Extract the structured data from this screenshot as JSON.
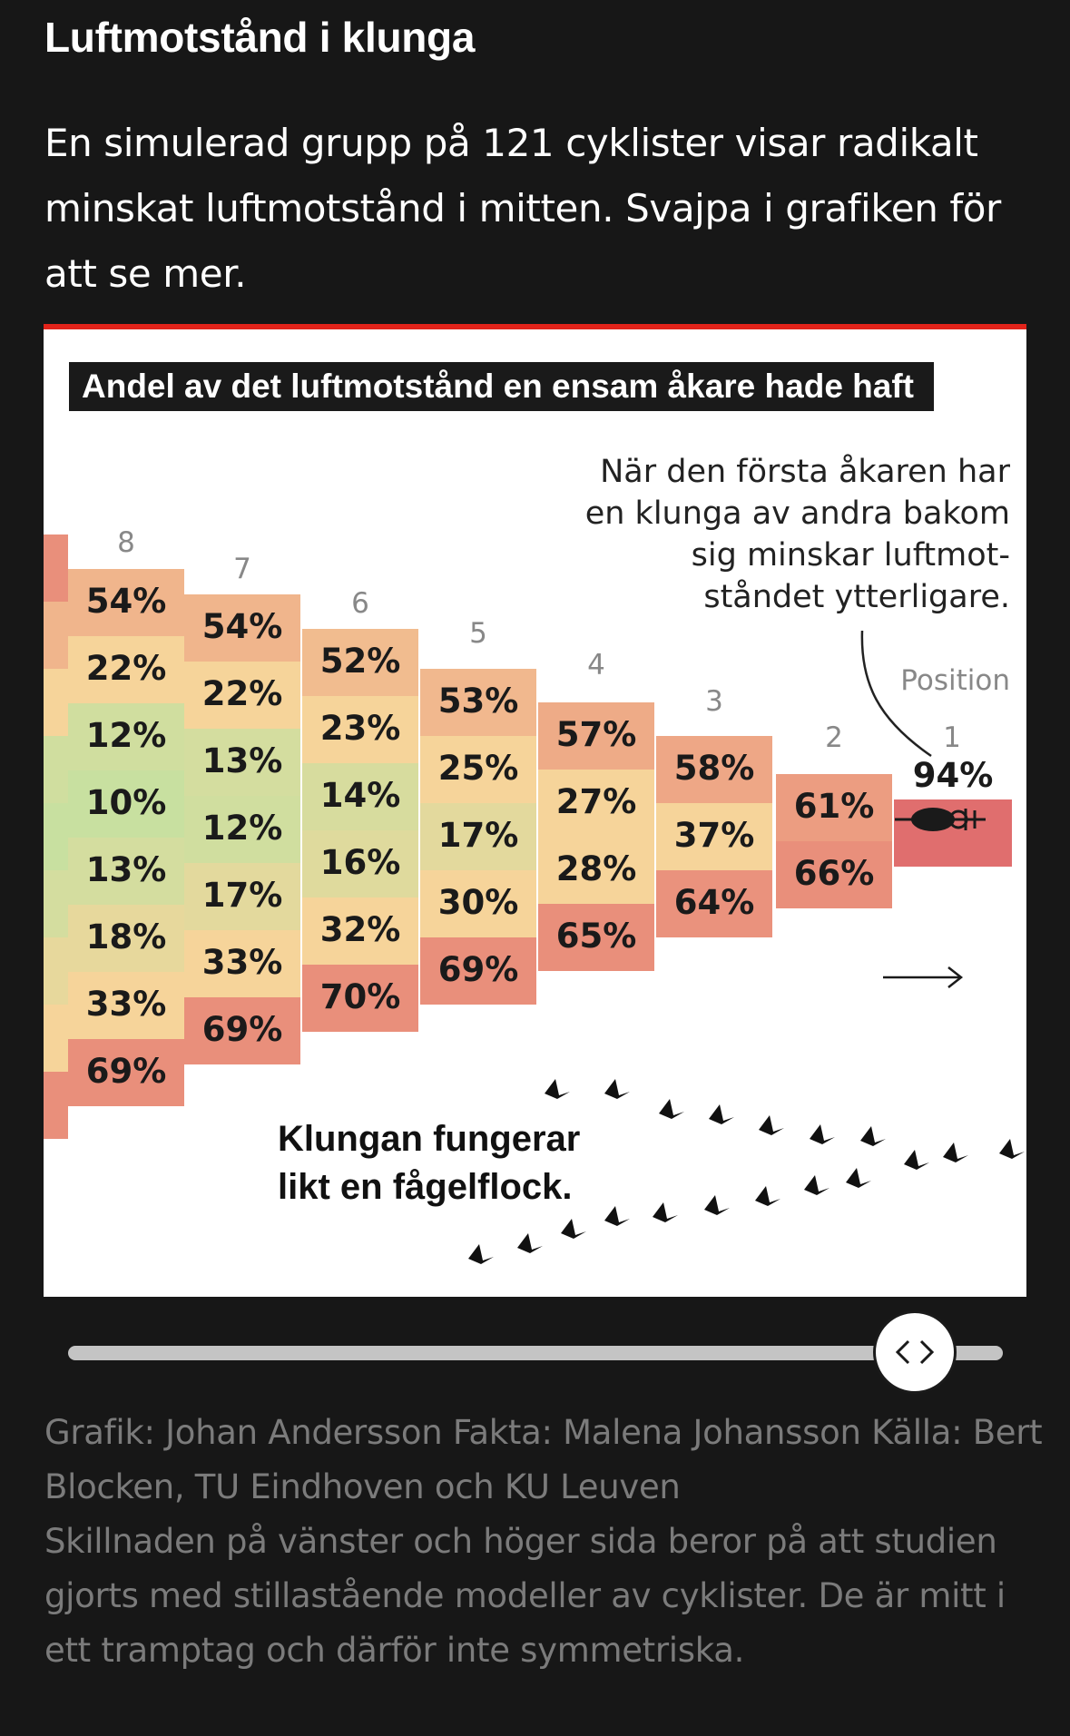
{
  "headline": "Luftmotstånd i klunga",
  "intro": "En simulerad grupp på 121 cyklister visar radikalt minskat luftmotstånd i mitten. Svajpa i grafiken för att se mer.",
  "graphic": {
    "title": "Andel av det luftmotstånd en ensam åkare hade haft",
    "annotation_lines": [
      "När den första åkaren har",
      "en klunga av andra bakom",
      "sig minskar luftmot-",
      "ståndet ytterligare."
    ],
    "position_label": "Position",
    "flock_caption_lines": [
      "Klungan fungerar",
      "likt en fågelflock."
    ],
    "columns": [
      {
        "position": "8",
        "values": [
          "54%",
          "22%",
          "12%",
          "10%",
          "13%",
          "18%",
          "33%",
          "69%"
        ]
      },
      {
        "position": "7",
        "values": [
          "54%",
          "22%",
          "13%",
          "12%",
          "17%",
          "33%",
          "69%"
        ]
      },
      {
        "position": "6",
        "values": [
          "52%",
          "23%",
          "14%",
          "16%",
          "32%",
          "70%"
        ]
      },
      {
        "position": "5",
        "values": [
          "53%",
          "25%",
          "17%",
          "30%",
          "69%"
        ]
      },
      {
        "position": "4",
        "values": [
          "57%",
          "27%",
          "28%",
          "65%"
        ]
      },
      {
        "position": "3",
        "values": [
          "58%",
          "37%",
          "64%"
        ]
      },
      {
        "position": "2",
        "values": [
          "61%",
          "66%"
        ]
      },
      {
        "position": "1",
        "values": [
          "94%"
        ]
      }
    ],
    "colors": {
      "high": "#e98f7b",
      "mid": "#f6d49a",
      "low": "#c8e0a0",
      "lead": "#e06e6e"
    }
  },
  "slider": {
    "position_percent": 92
  },
  "credits": {
    "line1": "Grafik: Johan Andersson Fakta: Malena Johansson Källa: Bert Blocken, TU Eindhoven och KU Leuven",
    "line2": "Skillnaden på vänster och höger sida beror på att studien gjorts med stillastående modeller av cyklister. De är mitt i ett tramptag och därför inte symmetriska."
  }
}
